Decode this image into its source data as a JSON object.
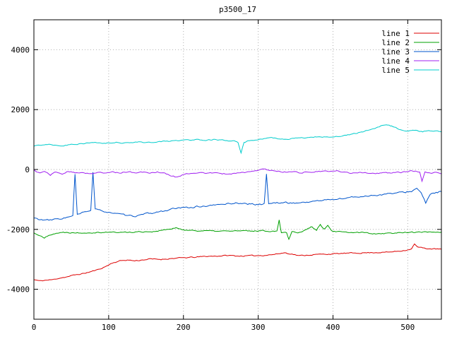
{
  "chart_data": {
    "type": "line",
    "title": "p3500_17",
    "xlabel": "",
    "ylabel": "",
    "xlim": [
      0,
      545
    ],
    "ylim": [
      -5000,
      5000
    ],
    "xticks": [
      0,
      100,
      200,
      300,
      400,
      500
    ],
    "yticks": [
      -4000,
      -2000,
      0,
      2000,
      4000
    ],
    "grid": true,
    "legend_position": "top-right",
    "grid_color": "#b0b0b0",
    "axis_color": "#000000",
    "series": [
      {
        "name": "line 1",
        "color": "#dd0000",
        "noise": 30,
        "seed": 11,
        "anchors": [
          [
            0,
            -3680
          ],
          [
            8,
            -3720
          ],
          [
            15,
            -3700
          ],
          [
            25,
            -3680
          ],
          [
            35,
            -3620
          ],
          [
            45,
            -3580
          ],
          [
            55,
            -3520
          ],
          [
            65,
            -3480
          ],
          [
            75,
            -3420
          ],
          [
            85,
            -3350
          ],
          [
            95,
            -3250
          ],
          [
            105,
            -3120
          ],
          [
            115,
            -3050
          ],
          [
            125,
            -3020
          ],
          [
            135,
            -3050
          ],
          [
            145,
            -3020
          ],
          [
            155,
            -2990
          ],
          [
            170,
            -3000
          ],
          [
            185,
            -2970
          ],
          [
            200,
            -2950
          ],
          [
            215,
            -2930
          ],
          [
            230,
            -2900
          ],
          [
            245,
            -2890
          ],
          [
            260,
            -2870
          ],
          [
            275,
            -2890
          ],
          [
            290,
            -2880
          ],
          [
            305,
            -2870
          ],
          [
            320,
            -2840
          ],
          [
            335,
            -2780
          ],
          [
            345,
            -2820
          ],
          [
            355,
            -2880
          ],
          [
            370,
            -2850
          ],
          [
            385,
            -2830
          ],
          [
            400,
            -2820
          ],
          [
            415,
            -2800
          ],
          [
            430,
            -2790
          ],
          [
            445,
            -2780
          ],
          [
            460,
            -2770
          ],
          [
            475,
            -2760
          ],
          [
            490,
            -2720
          ],
          [
            500,
            -2680
          ],
          [
            505,
            -2640
          ],
          [
            509,
            -2490
          ],
          [
            513,
            -2590
          ],
          [
            520,
            -2620
          ],
          [
            530,
            -2650
          ],
          [
            545,
            -2660
          ]
        ]
      },
      {
        "name": "line 2",
        "color": "#00a000",
        "noise": 35,
        "seed": 22,
        "anchors": [
          [
            0,
            -2120
          ],
          [
            8,
            -2200
          ],
          [
            14,
            -2300
          ],
          [
            20,
            -2180
          ],
          [
            30,
            -2120
          ],
          [
            45,
            -2100
          ],
          [
            60,
            -2110
          ],
          [
            80,
            -2100
          ],
          [
            100,
            -2090
          ],
          [
            120,
            -2100
          ],
          [
            140,
            -2080
          ],
          [
            160,
            -2070
          ],
          [
            180,
            -2000
          ],
          [
            190,
            -1960
          ],
          [
            200,
            -2010
          ],
          [
            215,
            -2040
          ],
          [
            230,
            -2050
          ],
          [
            250,
            -2060
          ],
          [
            270,
            -2050
          ],
          [
            290,
            -2060
          ],
          [
            305,
            -2040
          ],
          [
            318,
            -2060
          ],
          [
            325,
            -2050
          ],
          [
            328,
            -1680
          ],
          [
            331,
            -2100
          ],
          [
            338,
            -2100
          ],
          [
            341,
            -2330
          ],
          [
            345,
            -2060
          ],
          [
            355,
            -2100
          ],
          [
            365,
            -2000
          ],
          [
            372,
            -1900
          ],
          [
            378,
            -2050
          ],
          [
            383,
            -1820
          ],
          [
            388,
            -2000
          ],
          [
            393,
            -1880
          ],
          [
            398,
            -2060
          ],
          [
            410,
            -2090
          ],
          [
            425,
            -2110
          ],
          [
            440,
            -2100
          ],
          [
            455,
            -2140
          ],
          [
            470,
            -2130
          ],
          [
            485,
            -2120
          ],
          [
            500,
            -2090
          ],
          [
            515,
            -2100
          ],
          [
            530,
            -2080
          ],
          [
            545,
            -2090
          ]
        ]
      },
      {
        "name": "line 3",
        "color": "#0055cc",
        "noise": 45,
        "seed": 33,
        "anchors": [
          [
            0,
            -1620
          ],
          [
            10,
            -1680
          ],
          [
            20,
            -1700
          ],
          [
            30,
            -1660
          ],
          [
            40,
            -1620
          ],
          [
            48,
            -1580
          ],
          [
            52,
            -1560
          ],
          [
            55,
            -160
          ],
          [
            58,
            -1520
          ],
          [
            65,
            -1450
          ],
          [
            70,
            -1400
          ],
          [
            76,
            -1360
          ],
          [
            79,
            -80
          ],
          [
            82,
            -1340
          ],
          [
            90,
            -1380
          ],
          [
            100,
            -1420
          ],
          [
            110,
            -1480
          ],
          [
            120,
            -1520
          ],
          [
            130,
            -1560
          ],
          [
            140,
            -1540
          ],
          [
            150,
            -1480
          ],
          [
            160,
            -1450
          ],
          [
            170,
            -1400
          ],
          [
            180,
            -1350
          ],
          [
            190,
            -1300
          ],
          [
            200,
            -1280
          ],
          [
            210,
            -1260
          ],
          [
            220,
            -1240
          ],
          [
            230,
            -1220
          ],
          [
            240,
            -1200
          ],
          [
            250,
            -1160
          ],
          [
            260,
            -1140
          ],
          [
            270,
            -1120
          ],
          [
            280,
            -1130
          ],
          [
            290,
            -1160
          ],
          [
            300,
            -1170
          ],
          [
            308,
            -1150
          ],
          [
            311,
            -140
          ],
          [
            314,
            -1130
          ],
          [
            325,
            -1120
          ],
          [
            335,
            -1100
          ],
          [
            345,
            -1120
          ],
          [
            355,
            -1110
          ],
          [
            365,
            -1090
          ],
          [
            375,
            -1060
          ],
          [
            385,
            -1030
          ],
          [
            395,
            -1010
          ],
          [
            405,
            -990
          ],
          [
            415,
            -960
          ],
          [
            425,
            -930
          ],
          [
            435,
            -910
          ],
          [
            445,
            -880
          ],
          [
            455,
            -860
          ],
          [
            465,
            -840
          ],
          [
            475,
            -810
          ],
          [
            485,
            -790
          ],
          [
            495,
            -760
          ],
          [
            505,
            -720
          ],
          [
            512,
            -640
          ],
          [
            518,
            -780
          ],
          [
            524,
            -1120
          ],
          [
            530,
            -850
          ],
          [
            538,
            -760
          ],
          [
            545,
            -740
          ]
        ]
      },
      {
        "name": "line 4",
        "color": "#a020f0",
        "noise": 35,
        "seed": 44,
        "anchors": [
          [
            0,
            -20
          ],
          [
            8,
            -120
          ],
          [
            14,
            -60
          ],
          [
            22,
            -180
          ],
          [
            30,
            -80
          ],
          [
            38,
            -160
          ],
          [
            46,
            -60
          ],
          [
            55,
            -120
          ],
          [
            65,
            -90
          ],
          [
            75,
            -140
          ],
          [
            85,
            -100
          ],
          [
            95,
            -130
          ],
          [
            105,
            -80
          ],
          [
            115,
            -110
          ],
          [
            125,
            -70
          ],
          [
            135,
            -120
          ],
          [
            145,
            -90
          ],
          [
            155,
            -110
          ],
          [
            165,
            -80
          ],
          [
            175,
            -130
          ],
          [
            185,
            -220
          ],
          [
            192,
            -260
          ],
          [
            200,
            -160
          ],
          [
            210,
            -120
          ],
          [
            220,
            -100
          ],
          [
            230,
            -130
          ],
          [
            240,
            -110
          ],
          [
            250,
            -140
          ],
          [
            260,
            -150
          ],
          [
            270,
            -120
          ],
          [
            280,
            -100
          ],
          [
            290,
            -70
          ],
          [
            300,
            -40
          ],
          [
            308,
            20
          ],
          [
            315,
            -20
          ],
          [
            325,
            -60
          ],
          [
            335,
            -80
          ],
          [
            345,
            -70
          ],
          [
            355,
            -100
          ],
          [
            365,
            -90
          ],
          [
            375,
            -80
          ],
          [
            385,
            -60
          ],
          [
            395,
            -70
          ],
          [
            405,
            -50
          ],
          [
            415,
            -90
          ],
          [
            425,
            -120
          ],
          [
            435,
            -90
          ],
          [
            445,
            -110
          ],
          [
            455,
            -130
          ],
          [
            465,
            -120
          ],
          [
            475,
            -110
          ],
          [
            485,
            -100
          ],
          [
            495,
            -90
          ],
          [
            505,
            -40
          ],
          [
            510,
            -60
          ],
          [
            516,
            -100
          ],
          [
            519,
            -420
          ],
          [
            523,
            -90
          ],
          [
            530,
            -120
          ],
          [
            538,
            -100
          ],
          [
            545,
            -140
          ]
        ]
      },
      {
        "name": "line 5",
        "color": "#00cccc",
        "noise": 30,
        "seed": 55,
        "anchors": [
          [
            0,
            780
          ],
          [
            10,
            820
          ],
          [
            20,
            850
          ],
          [
            30,
            810
          ],
          [
            40,
            800
          ],
          [
            50,
            840
          ],
          [
            60,
            860
          ],
          [
            70,
            880
          ],
          [
            80,
            900
          ],
          [
            90,
            870
          ],
          [
            100,
            880
          ],
          [
            110,
            900
          ],
          [
            120,
            890
          ],
          [
            130,
            910
          ],
          [
            140,
            920
          ],
          [
            150,
            900
          ],
          [
            160,
            910
          ],
          [
            170,
            930
          ],
          [
            180,
            950
          ],
          [
            190,
            960
          ],
          [
            200,
            980
          ],
          [
            210,
            990
          ],
          [
            220,
            1000
          ],
          [
            230,
            990
          ],
          [
            240,
            1000
          ],
          [
            250,
            980
          ],
          [
            260,
            960
          ],
          [
            268,
            940
          ],
          [
            273,
            900
          ],
          [
            277,
            560
          ],
          [
            281,
            900
          ],
          [
            290,
            980
          ],
          [
            300,
            1000
          ],
          [
            310,
            1040
          ],
          [
            320,
            1050
          ],
          [
            330,
            1020
          ],
          [
            340,
            1010
          ],
          [
            350,
            1040
          ],
          [
            360,
            1050
          ],
          [
            370,
            1080
          ],
          [
            380,
            1100
          ],
          [
            390,
            1090
          ],
          [
            400,
            1100
          ],
          [
            410,
            1120
          ],
          [
            420,
            1150
          ],
          [
            430,
            1200
          ],
          [
            440,
            1260
          ],
          [
            450,
            1330
          ],
          [
            460,
            1420
          ],
          [
            468,
            1490
          ],
          [
            475,
            1470
          ],
          [
            482,
            1420
          ],
          [
            490,
            1330
          ],
          [
            497,
            1270
          ],
          [
            505,
            1290
          ],
          [
            512,
            1320
          ],
          [
            520,
            1260
          ],
          [
            528,
            1300
          ],
          [
            536,
            1280
          ],
          [
            545,
            1260
          ]
        ]
      }
    ]
  }
}
